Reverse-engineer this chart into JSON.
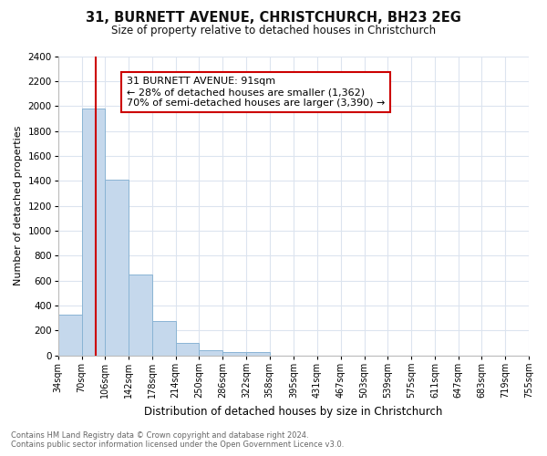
{
  "title": "31, BURNETT AVENUE, CHRISTCHURCH, BH23 2EG",
  "subtitle": "Size of property relative to detached houses in Christchurch",
  "xlabel": "Distribution of detached houses by size in Christchurch",
  "ylabel": "Number of detached properties",
  "bin_edges": [
    34,
    70,
    106,
    142,
    178,
    214,
    250,
    286,
    322,
    358,
    395,
    431,
    467,
    503,
    539,
    575,
    611,
    647,
    683,
    719,
    755
  ],
  "bin_labels": [
    "34sqm",
    "70sqm",
    "106sqm",
    "142sqm",
    "178sqm",
    "214sqm",
    "250sqm",
    "286sqm",
    "322sqm",
    "358sqm",
    "395sqm",
    "431sqm",
    "467sqm",
    "503sqm",
    "539sqm",
    "575sqm",
    "611sqm",
    "647sqm",
    "683sqm",
    "719sqm",
    "755sqm"
  ],
  "bar_heights": [
    325,
    1980,
    1410,
    650,
    275,
    100,
    45,
    30,
    30,
    0,
    0,
    0,
    0,
    0,
    0,
    0,
    0,
    0,
    0,
    0
  ],
  "bar_color": "#c5d8ec",
  "bar_edge_color": "#8ab4d4",
  "property_line_x": 91,
  "property_line_color": "#cc0000",
  "ylim": [
    0,
    2400
  ],
  "yticks": [
    0,
    200,
    400,
    600,
    800,
    1000,
    1200,
    1400,
    1600,
    1800,
    2000,
    2200,
    2400
  ],
  "annotation_box_text": "31 BURNETT AVENUE: 91sqm\n← 28% of detached houses are smaller (1,362)\n70% of semi-detached houses are larger (3,390) →",
  "annotation_box_color": "#cc0000",
  "background_color": "#ffffff",
  "grid_color": "#dce4ef",
  "footer_line1": "Contains HM Land Registry data © Crown copyright and database right 2024.",
  "footer_line2": "Contains public sector information licensed under the Open Government Licence v3.0."
}
